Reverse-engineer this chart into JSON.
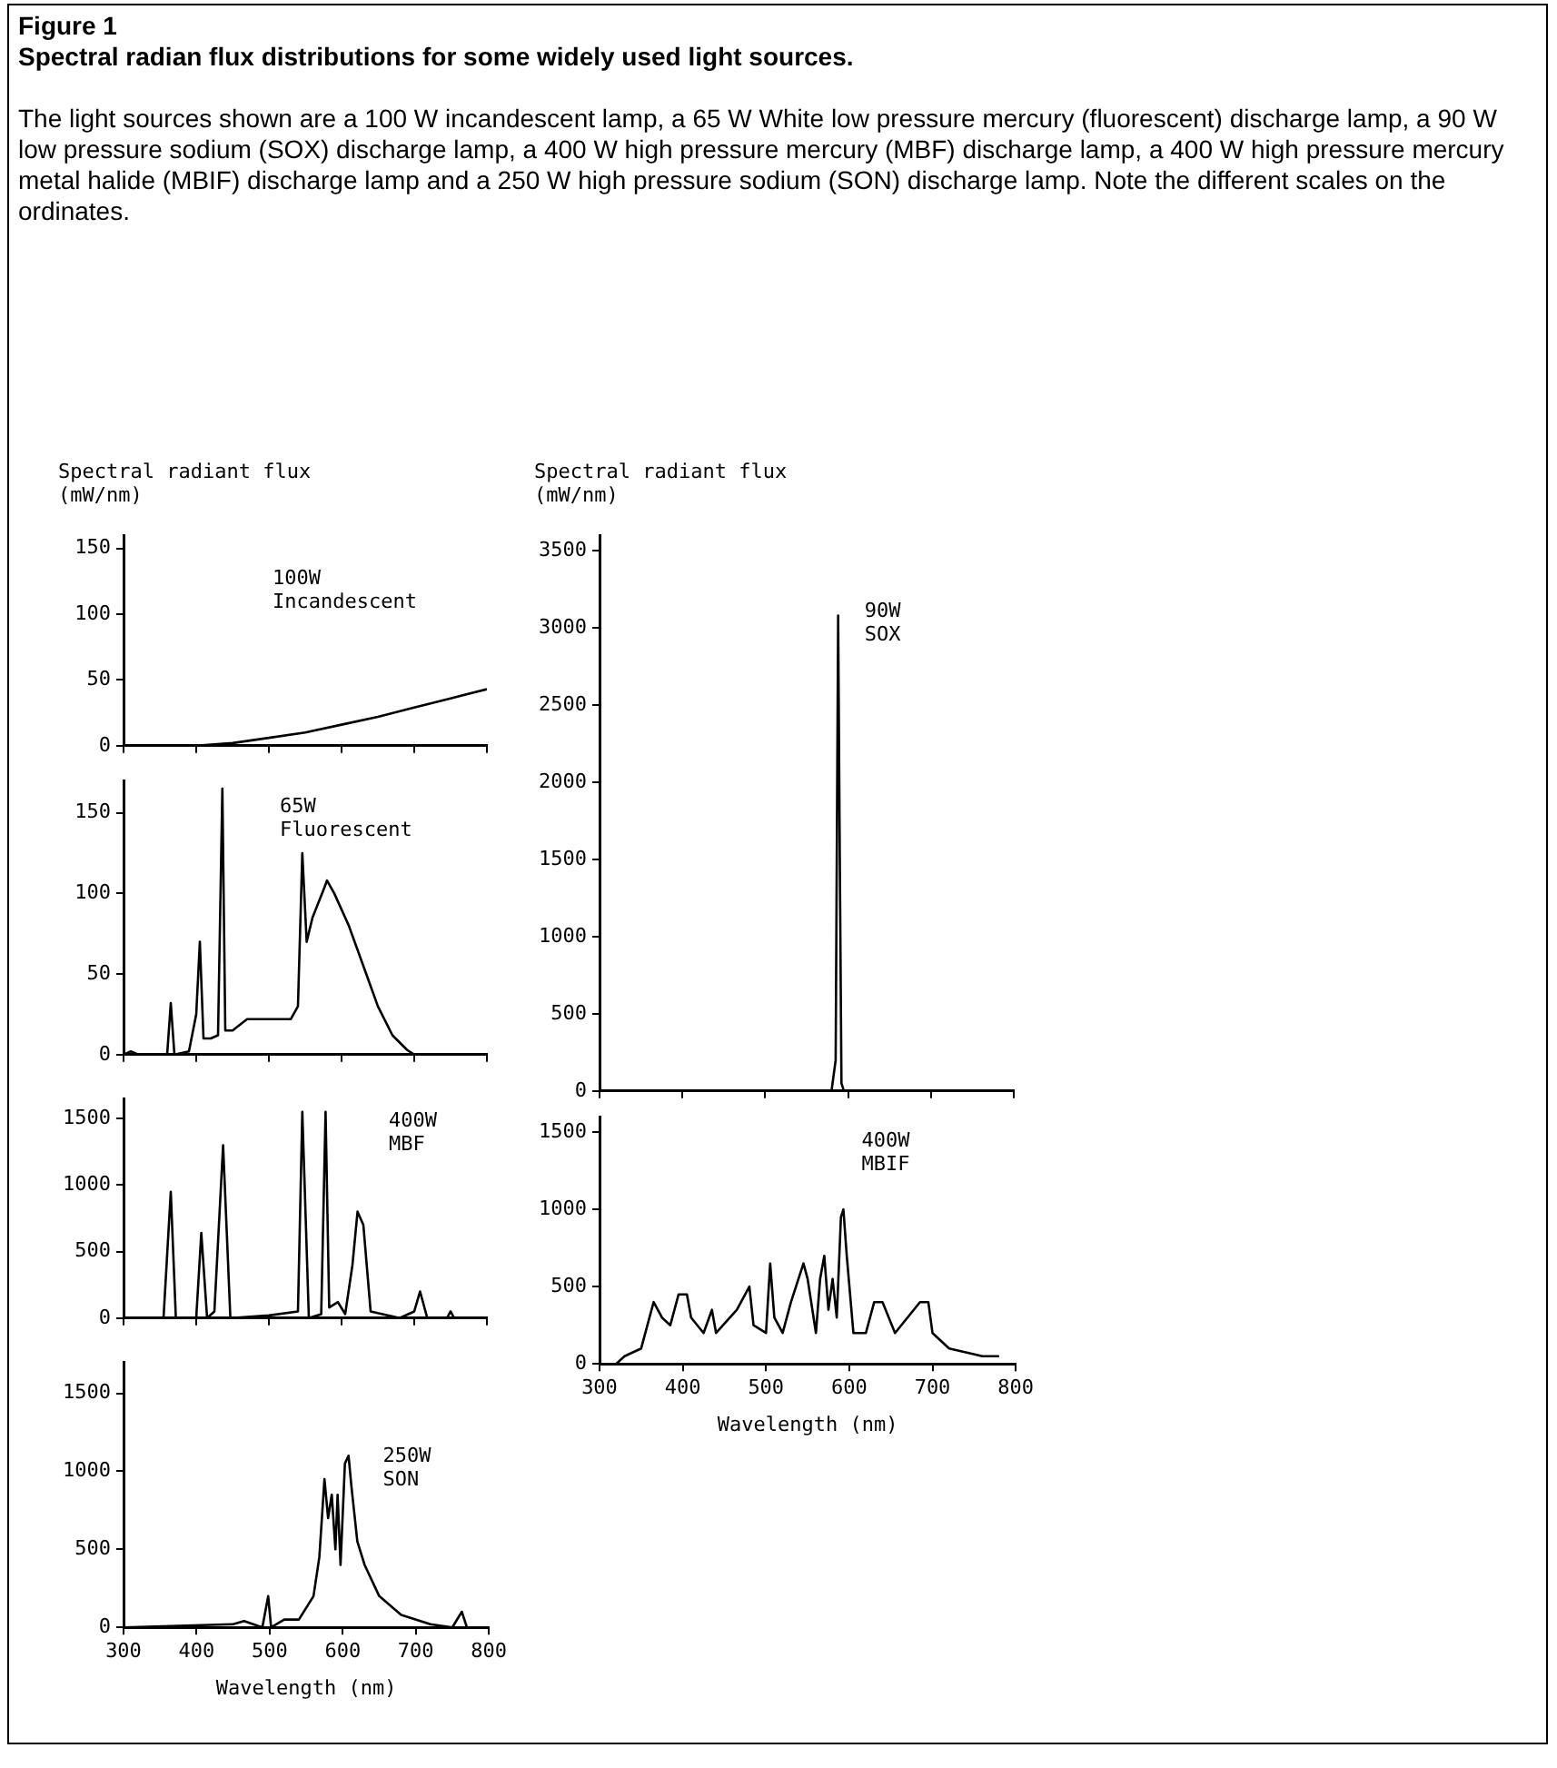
{
  "chart_data": [
    {
      "type": "other",
      "title": "Figure 1",
      "subtitle": "Spectral radian flux distributions for some widely used light sources.",
      "annotations": [
        "The light sources shown are a 100 W incandescent lamp, a 65 W White low pressure mercury (fluorescent) discharge lamp, a 90 W low pressure sodium (SOX) discharge lamp, a 400 W high pressure mercury (MBF) discharge lamp, a 400 W high pressure mercury metal halide (MBIF) discharge lamp and a 250 W high pressure sodium (SON) discharge lamp.  Note the different scales on the ordinates."
      ]
    },
    {
      "type": "line",
      "annotations": [
        "100W Incandescent"
      ],
      "ylabel": "Spectral radiant flux (mW/nm)",
      "color": "#000000",
      "marker": "none",
      "tick_labels": "y",
      "xlim": [
        300,
        800
      ],
      "xticks": [
        300,
        400,
        500,
        600,
        700,
        800
      ],
      "ylim": [
        0,
        160
      ],
      "yticks": [
        0,
        50,
        100,
        150
      ],
      "x": [
        400,
        450,
        500,
        550,
        600,
        650,
        700,
        750,
        800
      ],
      "values": [
        0,
        2,
        6,
        10,
        16,
        22,
        29,
        36,
        43
      ]
    },
    {
      "type": "line",
      "annotations": [
        "90W SOX"
      ],
      "ylabel": "Spectral radiant flux (mW/nm)",
      "color": "#000000",
      "marker": "none",
      "tick_labels": "y",
      "xlim": [
        300,
        800
      ],
      "xticks": [
        300,
        400,
        500,
        600,
        700,
        800
      ],
      "ylim": [
        0,
        3600
      ],
      "yticks": [
        0,
        500,
        1000,
        1500,
        2000,
        2500,
        3000,
        3500
      ],
      "x": [
        300,
        580,
        585,
        588,
        590,
        592,
        595,
        800
      ],
      "values": [
        0,
        0,
        200,
        3080,
        1500,
        50,
        0,
        0
      ]
    },
    {
      "type": "line",
      "annotations": [
        "65W Fluorescent"
      ],
      "color": "#000000",
      "marker": "none",
      "tick_labels": "y",
      "xlim": [
        300,
        800
      ],
      "xticks": [
        300,
        400,
        500,
        600,
        700,
        800
      ],
      "ylim": [
        0,
        170
      ],
      "yticks": [
        0,
        50,
        100,
        150
      ],
      "x": [
        300,
        310,
        320,
        360,
        365,
        370,
        390,
        400,
        405,
        410,
        420,
        430,
        436,
        440,
        450,
        470,
        500,
        530,
        540,
        546,
        552,
        560,
        575,
        580,
        590,
        610,
        630,
        650,
        670,
        690,
        700,
        800
      ],
      "values": [
        0,
        2,
        0,
        0,
        32,
        0,
        2,
        25,
        70,
        10,
        10,
        12,
        165,
        15,
        15,
        22,
        22,
        22,
        30,
        125,
        70,
        85,
        102,
        108,
        100,
        80,
        55,
        30,
        12,
        3,
        0,
        0
      ]
    },
    {
      "type": "line",
      "annotations": [
        "400W MBF"
      ],
      "color": "#000000",
      "marker": "none",
      "tick_labels": "y",
      "xlim": [
        300,
        800
      ],
      "xticks": [
        300,
        400,
        500,
        600,
        700,
        800
      ],
      "ylim": [
        0,
        1650
      ],
      "yticks": [
        0,
        500,
        1000,
        1500
      ],
      "x": [
        300,
        355,
        365,
        372,
        400,
        407,
        415,
        425,
        437,
        447,
        500,
        540,
        546,
        555,
        572,
        578,
        583,
        595,
        605,
        615,
        622,
        630,
        640,
        680,
        700,
        708,
        718,
        745,
        750,
        755,
        800
      ],
      "values": [
        0,
        0,
        950,
        0,
        0,
        640,
        0,
        50,
        1300,
        0,
        20,
        50,
        1550,
        0,
        30,
        1550,
        80,
        120,
        30,
        400,
        800,
        700,
        50,
        0,
        50,
        200,
        0,
        0,
        50,
        0,
        0
      ]
    },
    {
      "type": "line",
      "annotations": [
        "400W MBIF"
      ],
      "xlabel": "Wavelength (nm)",
      "color": "#000000",
      "marker": "none",
      "xlim": [
        300,
        800
      ],
      "xticks": [
        300,
        400,
        500,
        600,
        700,
        800
      ],
      "ylim": [
        0,
        1600
      ],
      "yticks": [
        0,
        500,
        1000,
        1500
      ],
      "x": [
        300,
        320,
        330,
        350,
        365,
        375,
        385,
        395,
        405,
        410,
        425,
        435,
        440,
        465,
        480,
        485,
        500,
        505,
        510,
        520,
        530,
        545,
        550,
        560,
        565,
        570,
        575,
        580,
        585,
        590,
        593,
        597,
        605,
        620,
        630,
        640,
        655,
        670,
        685,
        695,
        700,
        720,
        760,
        780
      ],
      "values": [
        0,
        0,
        50,
        100,
        400,
        300,
        250,
        450,
        450,
        300,
        200,
        350,
        200,
        350,
        500,
        250,
        200,
        650,
        300,
        200,
        400,
        650,
        550,
        200,
        550,
        700,
        350,
        550,
        300,
        950,
        1000,
        700,
        200,
        200,
        400,
        400,
        200,
        300,
        400,
        400,
        200,
        100,
        50,
        50
      ]
    },
    {
      "type": "line",
      "annotations": [
        "250W SON"
      ],
      "xlabel": "Wavelength (nm)",
      "color": "#000000",
      "marker": "none",
      "xlim": [
        300,
        800
      ],
      "xticks": [
        300,
        400,
        500,
        600,
        700,
        800
      ],
      "ylim": [
        0,
        1700
      ],
      "yticks": [
        0,
        500,
        1000,
        1500
      ],
      "x": [
        300,
        450,
        465,
        490,
        498,
        502,
        520,
        540,
        560,
        568,
        575,
        580,
        585,
        590,
        593,
        597,
        603,
        608,
        612,
        620,
        630,
        650,
        680,
        720,
        750,
        763,
        770,
        800
      ],
      "values": [
        0,
        20,
        40,
        0,
        200,
        0,
        50,
        50,
        200,
        450,
        950,
        700,
        850,
        500,
        850,
        400,
        1050,
        1100,
        900,
        550,
        400,
        200,
        80,
        20,
        0,
        100,
        0,
        0
      ]
    }
  ]
}
